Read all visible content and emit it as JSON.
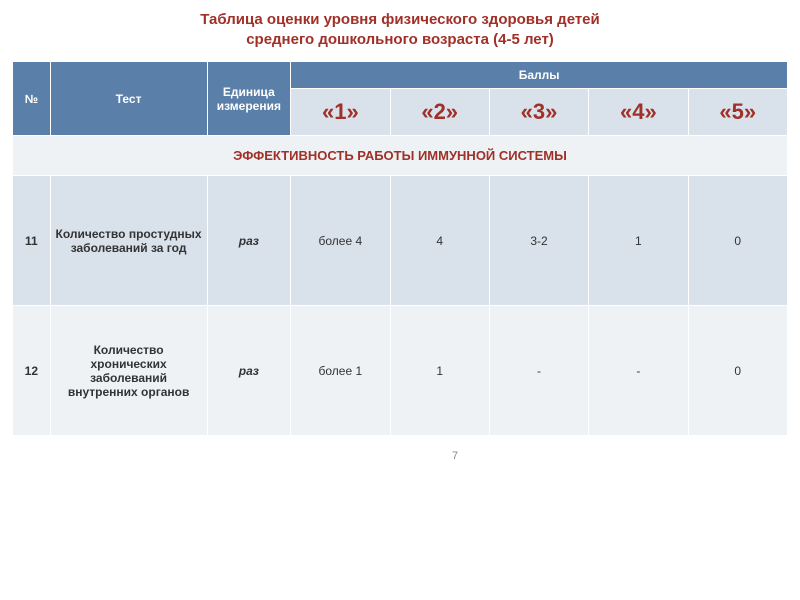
{
  "title_line1": "Таблица оценки уровня физического здоровья детей",
  "title_line2": "среднего дошкольного возраста (4-5 лет)",
  "title_color": "#a03028",
  "headers": {
    "num": "№",
    "test": "Тест",
    "unit": "Единица измерения",
    "scores": "Баллы",
    "score_labels": [
      "«1»",
      "«2»",
      "«3»",
      "«4»",
      "«5»"
    ]
  },
  "section_header": "ЭФФЕКТИВНОСТЬ РАБОТЫ ИММУННОЙ СИСТЕМЫ",
  "header_bg": "#5a7fa8",
  "header_fg": "#ffffff",
  "score_header_bg": "#d9e1ea",
  "section_bg": "#eef2f5",
  "accent_color": "#a03028",
  "row_light_bg": "#eef2f5",
  "row_med_bg": "#d9e1ea",
  "border_color": "#ffffff",
  "rows": [
    {
      "num": "11",
      "test": "Количество простудных заболеваний за год",
      "unit": "раз",
      "scores": [
        "более 4",
        "4",
        "3-2",
        "1",
        "0"
      ]
    },
    {
      "num": "12",
      "test": "Количество хронических заболеваний внутренних органов",
      "unit": "раз",
      "scores": [
        "более 1",
        "1",
        "-",
        "-",
        "0"
      ]
    }
  ],
  "page_number": "7"
}
